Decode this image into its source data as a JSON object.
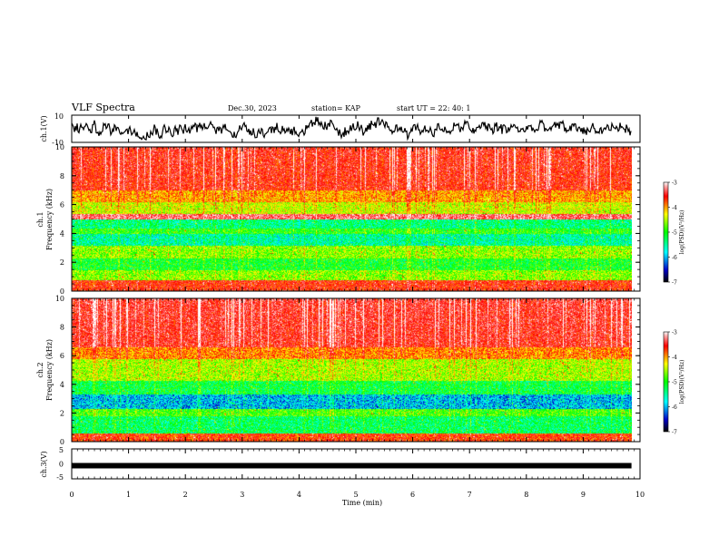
{
  "header": {
    "title": "VLF Spectra",
    "date": "Dec.30, 2023",
    "station": "station= KAP",
    "start": "start UT = 22: 40: 1"
  },
  "chart_data": [
    {
      "type": "line",
      "ylabel": "ch.1(V)",
      "ylim": [
        -10,
        10
      ],
      "yticks": [
        "10",
        "-10"
      ],
      "series_description": "noisy waveform roughly between -8 and 8 V"
    },
    {
      "type": "heatmap",
      "ylabel": "ch.1\nFrequency (kHz)",
      "ylabel_line1": "ch.1",
      "ylabel_line2": "Frequency (kHz)",
      "ylim": [
        0,
        10
      ],
      "yticks": [
        "0",
        "2",
        "4",
        "6",
        "8",
        "10"
      ],
      "colorbar": {
        "label": "log(PSD)(V²/Hz)",
        "ticks": [
          "-3",
          "-4",
          "-5",
          "-6",
          "-7"
        ],
        "range": [
          -7,
          -3
        ]
      },
      "bands_kHz": [
        {
          "range": [
            0.0,
            0.8
          ],
          "level": -3.9
        },
        {
          "range": [
            0.8,
            1.5
          ],
          "level": -5.0
        },
        {
          "range": [
            1.5,
            2.3
          ],
          "level": -5.4
        },
        {
          "range": [
            2.3,
            3.2
          ],
          "level": -5.0
        },
        {
          "range": [
            3.2,
            4.0
          ],
          "level": -5.8
        },
        {
          "range": [
            4.0,
            4.4
          ],
          "level": -5.3
        },
        {
          "range": [
            4.4,
            5.0
          ],
          "level": -5.7
        },
        {
          "range": [
            5.0,
            5.4
          ],
          "level": -3.5
        },
        {
          "range": [
            5.4,
            6.2
          ],
          "level": -4.8
        },
        {
          "range": [
            6.2,
            7.0
          ],
          "level": -4.4
        },
        {
          "range": [
            7.0,
            10.0
          ],
          "level": -3.9
        }
      ]
    },
    {
      "type": "heatmap",
      "ylabel": "ch.2\nFrequency (kHz)",
      "ylabel_line1": "ch.2",
      "ylabel_line2": "Frequency (kHz)",
      "ylim": [
        0,
        10
      ],
      "yticks": [
        "0",
        "2",
        "4",
        "6",
        "8",
        "10"
      ],
      "colorbar": {
        "label": "log(PSD)(V²/Hz)",
        "ticks": [
          "-3",
          "-4",
          "-5",
          "-6",
          "-7"
        ],
        "range": [
          -7,
          -3
        ]
      },
      "bands_kHz": [
        {
          "range": [
            0.0,
            0.6
          ],
          "level": -4.0
        },
        {
          "range": [
            0.6,
            1.8
          ],
          "level": -5.6
        },
        {
          "range": [
            1.8,
            2.3
          ],
          "level": -5.2
        },
        {
          "range": [
            2.3,
            3.3
          ],
          "level": -6.2
        },
        {
          "range": [
            3.3,
            4.3
          ],
          "level": -5.5
        },
        {
          "range": [
            4.3,
            5.8
          ],
          "level": -4.9
        },
        {
          "range": [
            5.8,
            6.6
          ],
          "level": -4.3
        },
        {
          "range": [
            6.6,
            10.0
          ],
          "level": -3.8
        }
      ]
    },
    {
      "type": "line",
      "ylabel": "ch.3(V)",
      "ylim": [
        -5,
        5
      ],
      "yticks": [
        "5",
        "0",
        "-5"
      ],
      "constant_value": -0.6
    }
  ],
  "xaxis": {
    "label": "Time (min)",
    "range": [
      0,
      10
    ],
    "ticks": [
      "0",
      "1",
      "2",
      "3",
      "4",
      "5",
      "6",
      "7",
      "8",
      "9",
      "10"
    ],
    "data_end": 9.85
  },
  "colors": {
    "low": "#00008b",
    "mid": "#00ff00",
    "high": "#ff0000",
    "top": "#ffffff"
  }
}
